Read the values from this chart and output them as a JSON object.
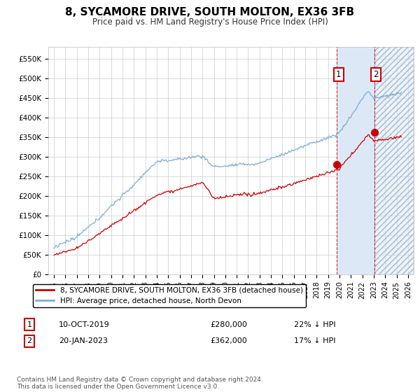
{
  "title": "8, SYCAMORE DRIVE, SOUTH MOLTON, EX36 3FB",
  "subtitle": "Price paid vs. HM Land Registry's House Price Index (HPI)",
  "legend_line1": "8, SYCAMORE DRIVE, SOUTH MOLTON, EX36 3FB (detached house)",
  "legend_line2": "HPI: Average price, detached house, North Devon",
  "annotation1_date": "10-OCT-2019",
  "annotation1_price": "£280,000",
  "annotation1_hpi": "22% ↓ HPI",
  "annotation2_date": "20-JAN-2023",
  "annotation2_price": "£362,000",
  "annotation2_hpi": "17% ↓ HPI",
  "footnote": "Contains HM Land Registry data © Crown copyright and database right 2024.\nThis data is licensed under the Open Government Licence v3.0.",
  "sale1_year": 2019.78,
  "sale1_value": 280000,
  "sale2_year": 2023.05,
  "sale2_value": 362000,
  "hpi_color": "#7bafd4",
  "price_color": "#cc0000",
  "bg_color": "#ffffff",
  "grid_color": "#cccccc",
  "annotation_box_color": "#cc0000",
  "shaded_region_color": "#dce8f5",
  "ylim_max": 580000,
  "xlim_start": 1994.5,
  "xlim_end": 2026.5
}
